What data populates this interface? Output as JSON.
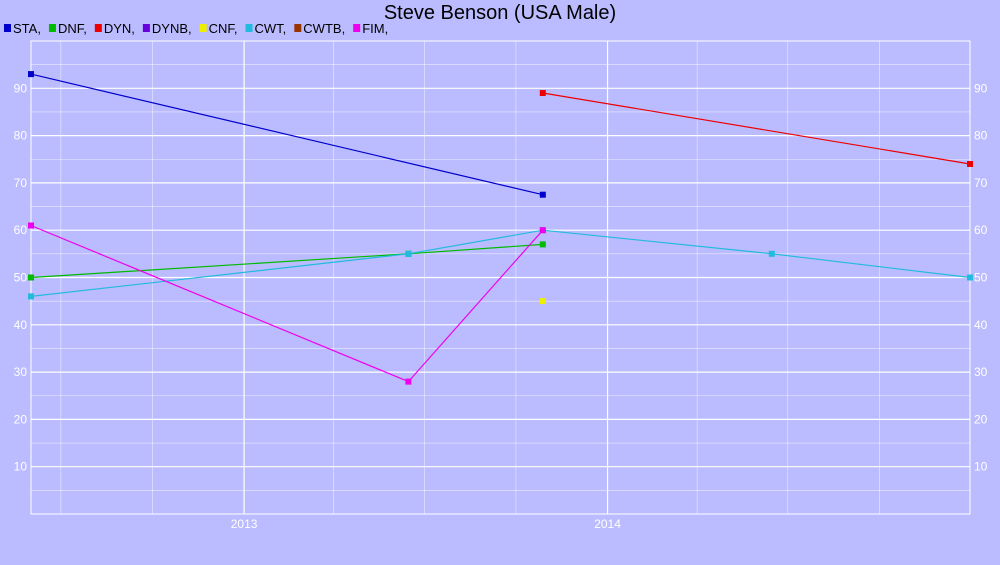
{
  "chart_data": {
    "type": "line",
    "title": "Steve Benson (USA Male)",
    "xlabel": "",
    "ylabel": "",
    "xlim": [
      "2012-06-01",
      "2014-12-31"
    ],
    "ylim": [
      0,
      100
    ],
    "yticks": [
      10,
      20,
      30,
      40,
      50,
      60,
      70,
      80,
      90
    ],
    "xticks": [
      {
        "label": "2013",
        "date": "2013-01-01"
      },
      {
        "label": "2014",
        "date": "2014-01-01"
      }
    ],
    "grid": true,
    "legend_position": "top-left",
    "legend": [
      {
        "label": "STA,",
        "color": "#0000cc"
      },
      {
        "label": "DNF,",
        "color": "#00bb00"
      },
      {
        "label": "DYN,",
        "color": "#ee0000"
      },
      {
        "label": "DYNB,",
        "color": "#6600dd"
      },
      {
        "label": "CNF,",
        "color": "#eeee00"
      },
      {
        "label": "CWT,",
        "color": "#22bbdd"
      },
      {
        "label": "CWTB,",
        "color": "#993300"
      },
      {
        "label": "FIM,",
        "color": "#ee00ee"
      }
    ],
    "series": [
      {
        "name": "STA",
        "color": "#0000cc",
        "points": [
          {
            "x": "2012-06-01",
            "y": 93
          },
          {
            "x": "2013-10-28",
            "y": 67.5
          }
        ]
      },
      {
        "name": "DNF",
        "color": "#00bb00",
        "points": [
          {
            "x": "2012-06-01",
            "y": 50
          },
          {
            "x": "2013-06-15",
            "y": 55
          },
          {
            "x": "2013-10-28",
            "y": 57
          }
        ]
      },
      {
        "name": "DYN",
        "color": "#ee0000",
        "points": [
          {
            "x": "2013-10-28",
            "y": 89
          },
          {
            "x": "2014-12-31",
            "y": 74
          }
        ]
      },
      {
        "name": "CNF",
        "color": "#eeee00",
        "points": [
          {
            "x": "2013-10-28",
            "y": 45
          }
        ]
      },
      {
        "name": "CWT",
        "color": "#22bbdd",
        "points": [
          {
            "x": "2012-06-01",
            "y": 46
          },
          {
            "x": "2013-06-15",
            "y": 55
          },
          {
            "x": "2013-10-28",
            "y": 60
          },
          {
            "x": "2014-06-15",
            "y": 55
          },
          {
            "x": "2014-12-31",
            "y": 50
          }
        ]
      },
      {
        "name": "FIM",
        "color": "#ee00ee",
        "points": [
          {
            "x": "2012-06-01",
            "y": 61
          },
          {
            "x": "2013-06-15",
            "y": 28
          },
          {
            "x": "2013-10-28",
            "y": 60
          }
        ]
      }
    ]
  }
}
